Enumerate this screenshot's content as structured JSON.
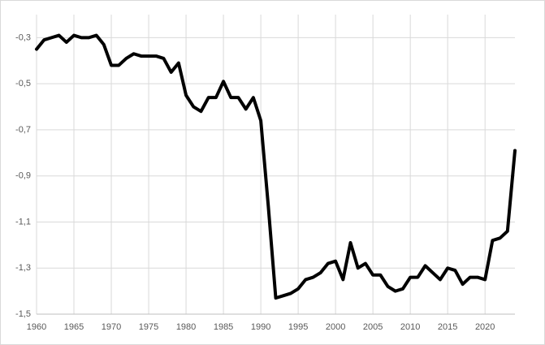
{
  "chart_data": {
    "type": "line",
    "x": [
      1960,
      1961,
      1962,
      1963,
      1964,
      1965,
      1966,
      1967,
      1968,
      1969,
      1970,
      1971,
      1972,
      1973,
      1974,
      1975,
      1976,
      1977,
      1978,
      1979,
      1980,
      1981,
      1982,
      1983,
      1984,
      1985,
      1986,
      1987,
      1988,
      1989,
      1990,
      1991,
      1992,
      1993,
      1994,
      1995,
      1996,
      1997,
      1998,
      1999,
      2000,
      2001,
      2002,
      2003,
      2004,
      2005,
      2006,
      2007,
      2008,
      2009,
      2010,
      2011,
      2012,
      2013,
      2014,
      2015,
      2016,
      2017,
      2018,
      2019,
      2020,
      2021,
      2022,
      2023,
      2024
    ],
    "values": [
      -0.35,
      -0.31,
      -0.3,
      -0.29,
      -0.32,
      -0.29,
      -0.3,
      -0.3,
      -0.29,
      -0.33,
      -0.42,
      -0.42,
      -0.39,
      -0.37,
      -0.38,
      -0.38,
      -0.38,
      -0.39,
      -0.45,
      -0.41,
      -0.55,
      -0.6,
      -0.62,
      -0.56,
      -0.56,
      -0.49,
      -0.56,
      -0.56,
      -0.61,
      -0.56,
      -0.66,
      -1.03,
      -1.43,
      -1.42,
      -1.41,
      -1.39,
      -1.35,
      -1.34,
      -1.32,
      -1.28,
      -1.27,
      -1.35,
      -1.19,
      -1.3,
      -1.28,
      -1.33,
      -1.33,
      -1.38,
      -1.4,
      -1.39,
      -1.34,
      -1.34,
      -1.29,
      -1.32,
      -1.35,
      -1.3,
      -1.31,
      -1.37,
      -1.34,
      -1.34,
      -1.35,
      -1.18,
      -1.17,
      -1.14,
      -0.79
    ],
    "color": "#000000",
    "xlim": [
      1960,
      2024
    ],
    "xticks": [
      1960,
      1965,
      1970,
      1975,
      1980,
      1985,
      1990,
      1995,
      2000,
      2005,
      2010,
      2015,
      2020
    ],
    "ylim": [
      -1.5,
      -0.2
    ],
    "yticks": [
      {
        "value": -1.5,
        "label": "-1,5"
      },
      {
        "value": -1.3,
        "label": "-1,3"
      },
      {
        "value": -1.1,
        "label": "-1,1"
      },
      {
        "value": -0.9,
        "label": "-0,9"
      },
      {
        "value": -0.7,
        "label": "-0,7"
      },
      {
        "value": -0.5,
        "label": "-0,5"
      },
      {
        "value": -0.3,
        "label": "-0,3"
      }
    ],
    "grid": true
  }
}
